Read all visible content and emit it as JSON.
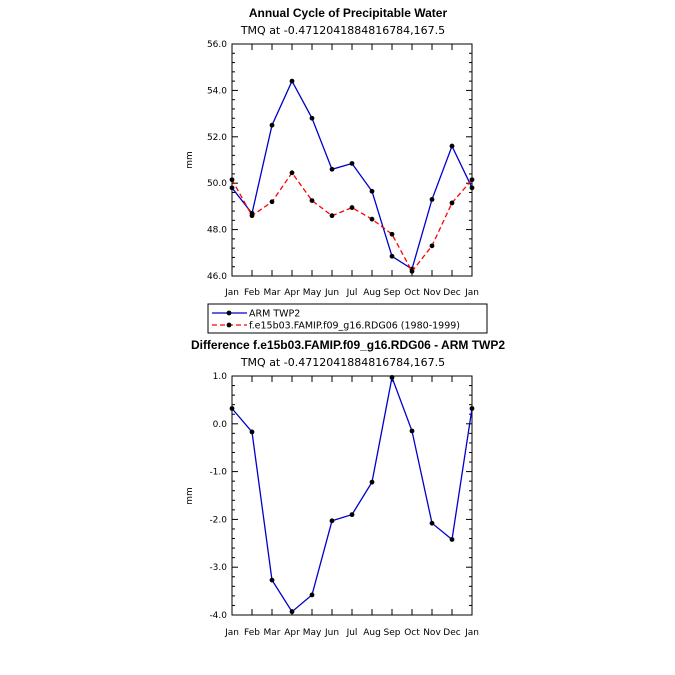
{
  "chart_data": [
    {
      "type": "line",
      "title": "Annual Cycle of Precipitable Water",
      "subtitle": "TMQ at -0.4712041884816784,167.5",
      "ylabel": "mm",
      "xlabel": "",
      "categories": [
        "Jan",
        "Feb",
        "Mar",
        "Apr",
        "May",
        "Jun",
        "Jul",
        "Aug",
        "Sep",
        "Oct",
        "Nov",
        "Dec",
        "Jan"
      ],
      "ylim": [
        46.0,
        56.0
      ],
      "yticks": [
        "46.0",
        "48.0",
        "50.0",
        "52.0",
        "54.0",
        "56.0"
      ],
      "series": [
        {
          "name": "ARM TWP2",
          "color": "#0000cc",
          "dash": "solid",
          "values": [
            49.8,
            48.7,
            52.5,
            54.4,
            52.8,
            50.6,
            50.85,
            49.65,
            46.85,
            46.3,
            49.3,
            51.6,
            49.8
          ]
        },
        {
          "name": "f.e15b03.FAMIP.f09_g16.RDG06 (1980-1999)",
          "color": "#ff0000",
          "dash": "dashed",
          "values": [
            50.15,
            48.6,
            49.2,
            50.45,
            49.25,
            48.6,
            48.95,
            48.45,
            47.8,
            46.2,
            47.3,
            49.15,
            50.15
          ]
        }
      ],
      "legend": "bottom"
    },
    {
      "type": "line",
      "title": "Difference f.e15b03.FAMIP.f09_g16.RDG06 - ARM TWP2",
      "subtitle": "TMQ at -0.4712041884816784,167.5",
      "ylabel": "mm",
      "xlabel": "",
      "categories": [
        "Jan",
        "Feb",
        "Mar",
        "Apr",
        "May",
        "Jun",
        "Jul",
        "Aug",
        "Sep",
        "Oct",
        "Nov",
        "Dec",
        "Jan"
      ],
      "ylim": [
        -4.0,
        1.0
      ],
      "yticks": [
        "-4.0",
        "-3.0",
        "-2.0",
        "-1.0",
        "0.0",
        "1.0"
      ],
      "series": [
        {
          "name": "Difference",
          "color": "#0000cc",
          "dash": "solid",
          "values": [
            0.32,
            -0.17,
            -3.27,
            -3.93,
            -3.58,
            -2.03,
            -1.9,
            -1.22,
            0.97,
            -0.15,
            -2.08,
            -2.42,
            0.32
          ]
        }
      ]
    }
  ]
}
